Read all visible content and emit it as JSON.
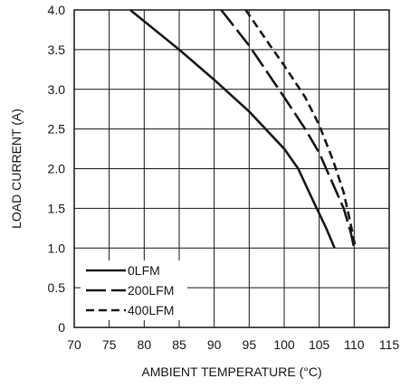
{
  "chart_data": {
    "type": "line",
    "title": "",
    "xlabel": "AMBIENT TEMPERATURE (°C)",
    "ylabel": "LOAD CURRENT (A)",
    "xlim": [
      70,
      115
    ],
    "ylim": [
      0,
      4.0
    ],
    "xticks": [
      70,
      75,
      80,
      85,
      90,
      95,
      100,
      105,
      110,
      115
    ],
    "xtick_labels": [
      "70",
      "75",
      "80",
      "85",
      "90",
      "95",
      "100",
      "105",
      "110",
      "115"
    ],
    "yticks": [
      0,
      0.5,
      1.0,
      1.5,
      2.0,
      2.5,
      3.0,
      3.5,
      4.0
    ],
    "ytick_labels": [
      "0",
      "0.5",
      "1.0",
      "1.5",
      "2.0",
      "2.5",
      "3.0",
      "3.5",
      "4.0"
    ],
    "grid": true,
    "legend_position": "bottom-left",
    "series": [
      {
        "name": "0LFM",
        "dash": "solid",
        "x": [
          78,
          85,
          90,
          95,
          100,
          102,
          104,
          106,
          107.2
        ],
        "y": [
          4.0,
          3.5,
          3.12,
          2.72,
          2.25,
          2.0,
          1.62,
          1.25,
          1.0
        ]
      },
      {
        "name": "200LFM",
        "dash": "long-dash",
        "x": [
          91,
          95,
          100,
          103,
          105,
          107,
          108.5,
          109.5,
          110
        ],
        "y": [
          4.0,
          3.55,
          2.9,
          2.5,
          2.2,
          1.8,
          1.5,
          1.2,
          1.0
        ]
      },
      {
        "name": "400LFM",
        "dash": "short-dash",
        "x": [
          94.5,
          98,
          100,
          103,
          105,
          107,
          108.5,
          109.5,
          110.2
        ],
        "y": [
          4.0,
          3.55,
          3.3,
          2.9,
          2.55,
          2.1,
          1.7,
          1.3,
          1.0
        ]
      }
    ]
  }
}
